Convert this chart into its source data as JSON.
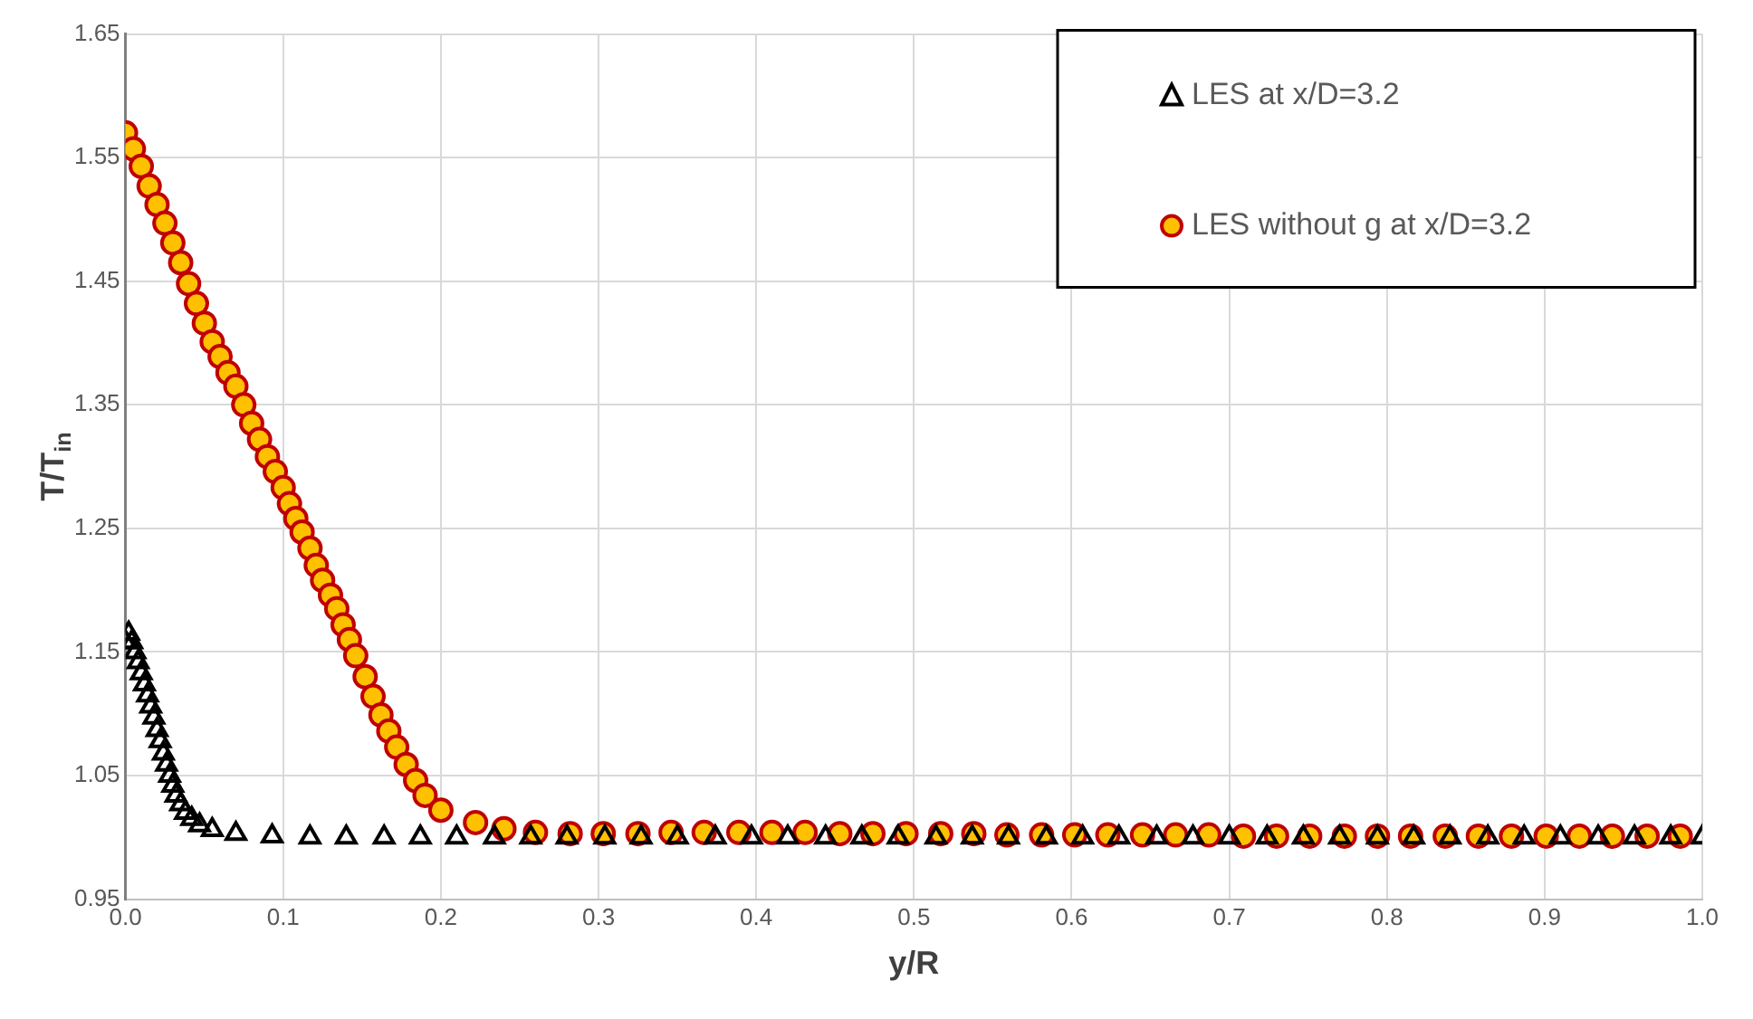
{
  "chart_data": {
    "type": "scatter",
    "xlabel": "y/R",
    "ylabel": "T/T$_{in}$",
    "xlim": [
      0,
      1
    ],
    "xticks": [
      {
        "value": 0,
        "label": "0.0"
      },
      0.1,
      0.2,
      0.3,
      0.4,
      0.5,
      0.6,
      0.7,
      0.8,
      0.9,
      {
        "value": 1,
        "label": "1.0"
      }
    ],
    "ylim": [
      0.95,
      1.65
    ],
    "yticks": [
      0.95,
      1.05,
      1.15,
      1.25,
      1.35,
      1.45,
      1.55,
      1.65
    ],
    "grid": true,
    "legend": "top right",
    "series": [
      {
        "name": "LES at x/D=3.2",
        "color": "#000000",
        "marker": "triangle",
        "x": [
          0,
          0.002,
          0.004,
          0.006,
          0.008,
          0.01,
          0.012,
          0.014,
          0.016,
          0.018,
          0.02,
          0.022,
          0.024,
          0.026,
          0.028,
          0.03,
          0.032,
          0.035,
          0.038,
          0.042,
          0.047,
          0.055,
          0.07,
          0.093,
          0.117,
          0.14,
          0.164,
          0.187,
          0.21,
          0.234,
          0.257,
          0.28,
          0.304,
          0.327,
          0.35,
          0.374,
          0.397,
          0.42,
          0.444,
          0.467,
          0.49,
          0.514,
          0.537,
          0.56,
          0.584,
          0.607,
          0.63,
          0.654,
          0.677,
          0.7,
          0.724,
          0.747,
          0.77,
          0.794,
          0.817,
          0.84,
          0.864,
          0.887,
          0.91,
          0.934,
          0.957,
          0.98,
          1.0
        ],
        "values": [
          1.158,
          1.165,
          1.158,
          1.15,
          1.142,
          1.133,
          1.124,
          1.115,
          1.106,
          1.097,
          1.087,
          1.078,
          1.068,
          1.059,
          1.05,
          1.042,
          1.034,
          1.027,
          1.02,
          1.015,
          1.01,
          1.006,
          1.003,
          1.001,
          1.0,
          1.0,
          1.0,
          1.0,
          1.0,
          1.0,
          1.0,
          1.0,
          1.0,
          1.0,
          1.0,
          1.0,
          1.0,
          1.0,
          1.0,
          1.0,
          1.0,
          1.0,
          1.0,
          1.0,
          1.0,
          1.0,
          1.0,
          1.0,
          1.0,
          1.0,
          1.0,
          1.0,
          1.0,
          1.0,
          1.0,
          1.0,
          1.0,
          1.0,
          1.0,
          1.0,
          1.0,
          1.0,
          1.0
        ]
      },
      {
        "name": "LES without g at x/D=3.2",
        "color": "#ffc000",
        "marker": "circle",
        "x": [
          0,
          0.005,
          0.01,
          0.015,
          0.02,
          0.025,
          0.03,
          0.035,
          0.04,
          0.045,
          0.05,
          0.055,
          0.06,
          0.065,
          0.07,
          0.075,
          0.08,
          0.085,
          0.09,
          0.095,
          0.1,
          0.104,
          0.108,
          0.112,
          0.117,
          0.121,
          0.125,
          0.13,
          0.134,
          0.138,
          0.142,
          0.146,
          0.152,
          0.157,
          0.162,
          0.167,
          0.172,
          0.178,
          0.184,
          0.19,
          0.2,
          0.222,
          0.24,
          0.26,
          0.282,
          0.303,
          0.325,
          0.346,
          0.367,
          0.389,
          0.41,
          0.431,
          0.453,
          0.474,
          0.495,
          0.517,
          0.538,
          0.559,
          0.581,
          0.602,
          0.623,
          0.645,
          0.666,
          0.687,
          0.709,
          0.73,
          0.751,
          0.773,
          0.794,
          0.815,
          0.837,
          0.858,
          0.879,
          0.901,
          0.922,
          0.943,
          0.965,
          0.986
        ],
        "values": [
          1.57,
          1.557,
          1.543,
          1.527,
          1.512,
          1.497,
          1.481,
          1.465,
          1.448,
          1.432,
          1.416,
          1.401,
          1.389,
          1.376,
          1.365,
          1.35,
          1.335,
          1.322,
          1.308,
          1.296,
          1.283,
          1.27,
          1.258,
          1.247,
          1.234,
          1.22,
          1.208,
          1.196,
          1.185,
          1.172,
          1.16,
          1.147,
          1.13,
          1.114,
          1.099,
          1.086,
          1.073,
          1.059,
          1.046,
          1.034,
          1.022,
          1.012,
          1.007,
          1.004,
          1.003,
          1.003,
          1.003,
          1.004,
          1.004,
          1.004,
          1.004,
          1.004,
          1.003,
          1.003,
          1.003,
          1.003,
          1.003,
          1.002,
          1.002,
          1.002,
          1.002,
          1.002,
          1.002,
          1.002,
          1.001,
          1.001,
          1.001,
          1.001,
          1.001,
          1.001,
          1.001,
          1.001,
          1.001,
          1.001,
          1.001,
          1.001,
          1.001,
          1.001
        ]
      }
    ]
  }
}
